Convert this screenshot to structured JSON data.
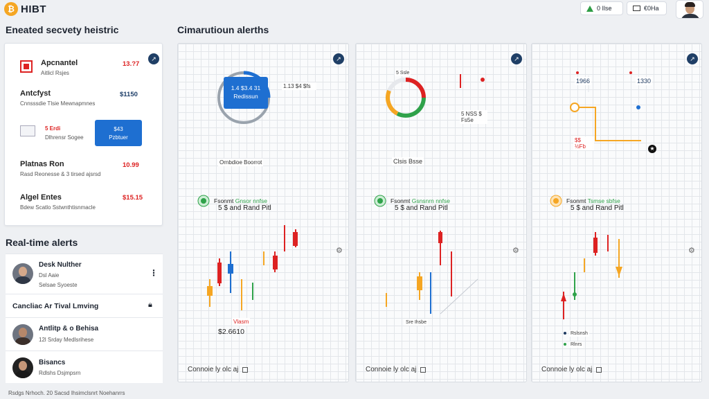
{
  "header": {
    "logo_glyph": "₿",
    "logo_text": "HIBT",
    "btn1_label": "0 Ilse",
    "btn2_label": "€0Ha"
  },
  "left": {
    "title": "Eneated secvety heistric",
    "rows": [
      {
        "title": "Apcnantel",
        "sub": "Aitlicl Rsjes",
        "value": "13.?7"
      },
      {
        "title": "Antcfyst",
        "sub": "Cnnsssdie Tlsie Mewnapmnes",
        "value": "$1150"
      },
      {
        "title": "",
        "sub": "Dlhrensr Sogee",
        "value": "5 Erdi"
      },
      {
        "title": "Platnas Ron",
        "sub": "Rasd Reonesse & 3 tirsed ajsrsd",
        "value": "10.99"
      },
      {
        "title": "Algel Entes",
        "sub": "Bdew Scatlo Sstwnthtisnmacle",
        "value": "$15.15"
      }
    ],
    "blue_block": {
      "line1": "$43",
      "line2": "Pzbtuer"
    }
  },
  "alerts": {
    "title": "Real-time alerts",
    "items": [
      {
        "name": "Desk Nulther",
        "sub1": "Dsl Aaie",
        "sub2": "Selsae Syoeste"
      },
      {
        "name": "Cancliac Ar Tival Lmving",
        "sub1": "",
        "sub2": ""
      },
      {
        "name": "Antlitp & o Behisa",
        "sub1": "12l Srday Medlsrihese",
        "sub2": ""
      },
      {
        "name": "Bisancs",
        "sub1": "Rdlshs Dsjmpsrn",
        "sub2": ""
      }
    ],
    "footer": "Rsdgs Nrhoch. 20 Sacsd Ihsimclsnrt Noehanrrs"
  },
  "main": {
    "title": "Cimarutioun alerths",
    "panels": [
      {
        "top_label": "1.4 $3.4 31 Redissun",
        "box_label": "1.13 $4 $fs",
        "mid_label": "Ornbdioe Boorrot",
        "green_label": "Fsonmt",
        "green_tag": "Gnsor nnfse",
        "big_text": "5 $ and Rand Pitl",
        "price": "$2.6610",
        "price_label": "Vlasm",
        "footer": "Connoie ly olc aj"
      },
      {
        "top_label": "5 Ssle",
        "box_label": "5 NSS $ Fs5e",
        "mid_label": "Clsis Bsse",
        "green_label": "Fsonmt",
        "green_tag": "Gsnsnrn nnfse",
        "big_text": "5 $ and Rand Pitl",
        "price_label": "Sre Ihsbe",
        "footer": "Connoie ly olc aj"
      },
      {
        "top_label": "1966",
        "top_label2": "1330",
        "box_label": "$$ ½Fb",
        "green_label": "Fsonmt",
        "green_tag": "Tsmse sbfse",
        "big_text": "5 $ and Rand Pitl",
        "note1": "Rslsnsh",
        "note2": "Rlnrs",
        "footer": "Connoie ly olc aj"
      }
    ]
  },
  "colors": {
    "accent_blue": "#1e6fd1",
    "alert_red": "#d22",
    "up_green": "#2fa24a",
    "orange": "#f5a623",
    "navy": "#1f3f66"
  }
}
